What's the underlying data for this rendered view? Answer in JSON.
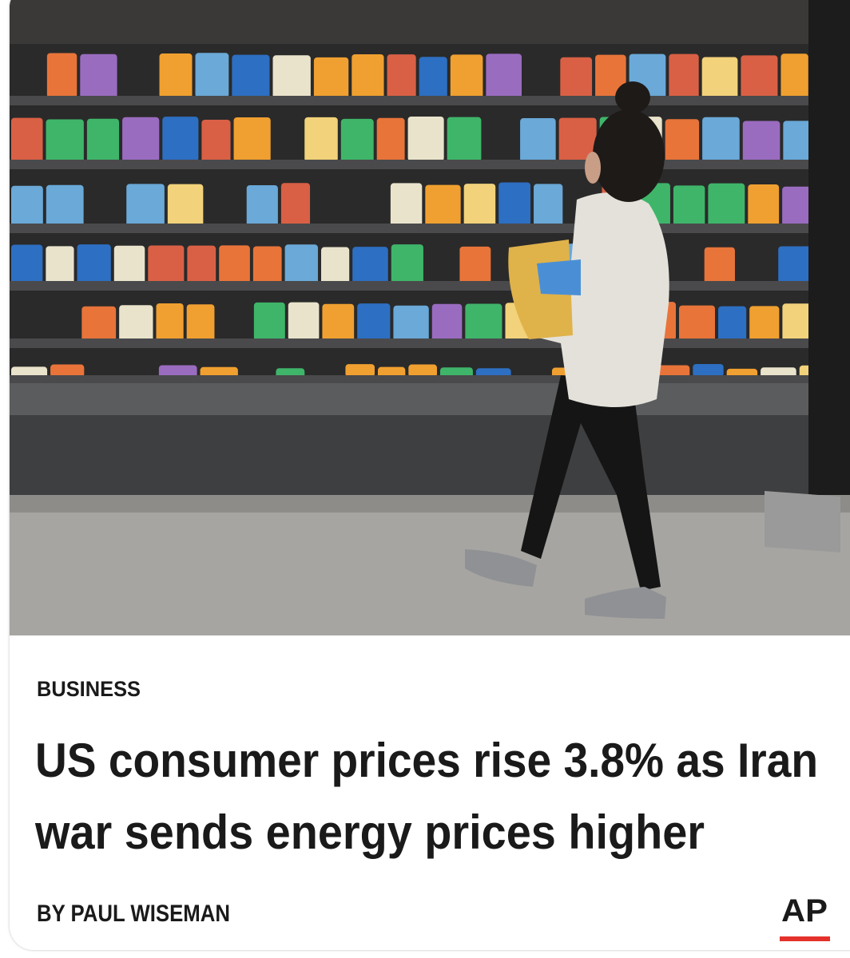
{
  "section": "BUSINESS",
  "headline": {
    "lines": [
      "US consumer prices rise 3.8% as Iran",
      "war sends energy prices higher"
    ]
  },
  "byline": "BY PAUL WISEMAN",
  "source_logo": "AP"
}
